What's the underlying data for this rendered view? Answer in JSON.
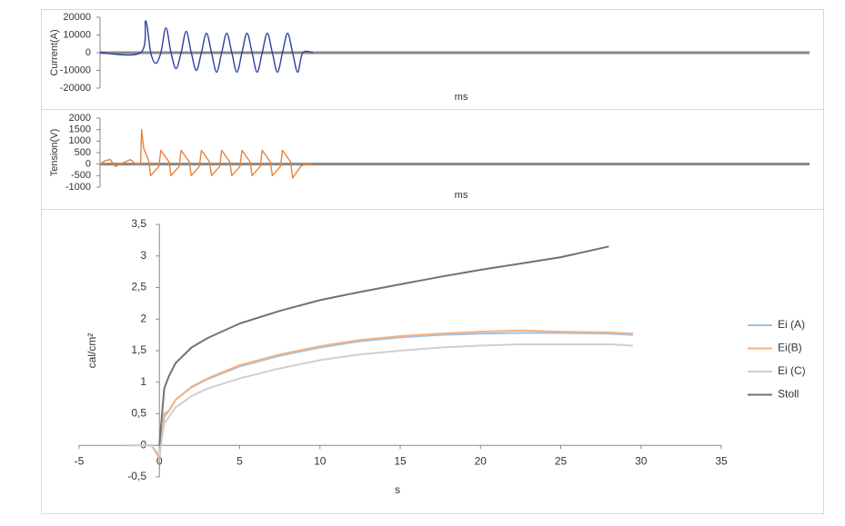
{
  "chart_data": [
    {
      "type": "line",
      "ylabel": "Current(A)",
      "xlabel": "ms",
      "color": "#2e3f9e",
      "xlim": [
        0,
        700
      ],
      "ylim": [
        -20000,
        20000
      ],
      "yticks": [
        20000,
        10000,
        0,
        -10000,
        -20000
      ],
      "x": [
        0,
        40,
        45,
        50,
        55,
        60,
        65,
        70,
        75,
        80,
        85,
        90,
        95,
        100,
        105,
        110,
        115,
        120,
        125,
        130,
        135,
        140,
        145,
        150,
        155,
        160,
        165,
        170,
        175,
        180,
        185,
        190,
        195,
        200,
        210
      ],
      "values": [
        0,
        0,
        18000,
        0,
        -6000,
        0,
        14000,
        0,
        -9000,
        0,
        12000,
        0,
        -10000,
        0,
        11000,
        0,
        -11000,
        0,
        11000,
        0,
        -11000,
        0,
        11000,
        0,
        -11000,
        0,
        11000,
        0,
        -11000,
        0,
        11000,
        0,
        -11000,
        0,
        0
      ]
    },
    {
      "type": "line",
      "ylabel": "Tension(V)",
      "xlabel": "ms",
      "color": "#e8823a",
      "xlim": [
        0,
        700
      ],
      "ylim": [
        -1000,
        2000
      ],
      "yticks": [
        2000,
        1500,
        1000,
        500,
        0,
        -500,
        -1000
      ],
      "x": [
        0,
        5,
        10,
        15,
        20,
        25,
        30,
        35,
        40,
        41,
        43,
        48,
        50,
        58,
        60,
        68,
        70,
        78,
        80,
        88,
        90,
        98,
        100,
        108,
        110,
        118,
        120,
        128,
        130,
        138,
        140,
        148,
        150,
        158,
        160,
        168,
        170,
        178,
        180,
        188,
        190,
        198,
        202,
        210
      ],
      "values": [
        0,
        150,
        200,
        -100,
        0,
        100,
        200,
        0,
        0,
        1500,
        700,
        150,
        -500,
        -100,
        600,
        100,
        -500,
        -100,
        600,
        100,
        -500,
        -100,
        600,
        100,
        -500,
        -100,
        600,
        100,
        -500,
        -100,
        600,
        100,
        -500,
        -100,
        600,
        100,
        -500,
        -100,
        600,
        100,
        -600,
        -100,
        0,
        0
      ]
    },
    {
      "type": "line",
      "ylabel": "cal/cm²",
      "xlabel": "s",
      "legend": "right",
      "xlim": [
        -5,
        35
      ],
      "ylim": [
        -0.5,
        3.5
      ],
      "xticks": [
        -5,
        0,
        5,
        10,
        15,
        20,
        25,
        30,
        35
      ],
      "yticks": [
        {
          "value": -0.5,
          "label": "-0,5"
        },
        0,
        {
          "value": 0.5,
          "label": "0,5"
        },
        1,
        {
          "value": 1.5,
          "label": "1,5"
        },
        2,
        {
          "value": 2.5,
          "label": "2,5"
        },
        3,
        {
          "value": 3.5,
          "label": "3,5"
        }
      ],
      "x": [
        -2,
        -0.5,
        0,
        0.3,
        0.6,
        1,
        2,
        3,
        5,
        7.5,
        10,
        12.5,
        15,
        17.5,
        20,
        22.5,
        25,
        28,
        29.5
      ],
      "series": [
        {
          "name": "Ei (A)",
          "color": "#9dc3e6",
          "values": [
            0,
            0,
            -0.2,
            0.5,
            0.55,
            0.72,
            0.92,
            1.05,
            1.25,
            1.42,
            1.55,
            1.65,
            1.71,
            1.75,
            1.77,
            1.78,
            1.78,
            1.77,
            1.75
          ]
        },
        {
          "name": "Ei(B)",
          "color": "#f4b183",
          "values": [
            0,
            0,
            -0.2,
            0.45,
            0.55,
            0.72,
            0.93,
            1.06,
            1.27,
            1.44,
            1.57,
            1.67,
            1.73,
            1.77,
            1.8,
            1.82,
            1.8,
            1.79,
            1.77
          ]
        },
        {
          "name": "Ei (C)",
          "color": "#d0cece",
          "values": [
            0,
            0,
            -0.15,
            0.35,
            0.45,
            0.6,
            0.78,
            0.9,
            1.06,
            1.22,
            1.35,
            1.44,
            1.5,
            1.55,
            1.58,
            1.6,
            1.6,
            1.6,
            1.58
          ]
        },
        {
          "name": "Stoll",
          "color": "#767171",
          "values": [
            null,
            null,
            0,
            0.9,
            1.1,
            1.3,
            1.55,
            1.7,
            1.93,
            2.13,
            2.3,
            2.43,
            2.55,
            2.67,
            2.78,
            2.88,
            2.98,
            3.15,
            null
          ]
        }
      ]
    }
  ]
}
